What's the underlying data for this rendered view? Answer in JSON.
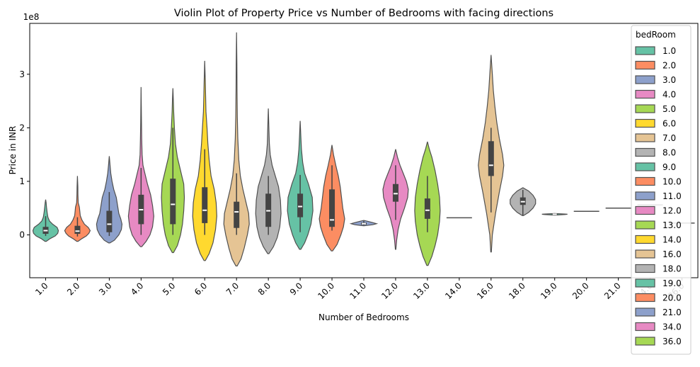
{
  "chart_data": {
    "type": "violin",
    "title": "Violin Plot of Property Price vs Number of Bedrooms with facing directions",
    "xlabel": "Number of Bedrooms",
    "ylabel": "Price in INR",
    "y_scale_label": "1e8",
    "y_unit": 100000000,
    "ylim": [
      -80000000,
      395000000
    ],
    "yticks": [
      "0",
      "1",
      "2",
      "3"
    ],
    "grid": false,
    "legend_title": "bedRoom",
    "legend_position": "upper right",
    "categories": [
      "1.0",
      "2.0",
      "3.0",
      "4.0",
      "5.0",
      "6.0",
      "7.0",
      "8.0",
      "9.0",
      "10.0",
      "11.0",
      "12.0",
      "13.0",
      "14.0",
      "16.0",
      "18.0",
      "19.0",
      "20.0",
      "21.0",
      "34.0",
      "36.0"
    ],
    "palette": [
      "#66c2a5",
      "#fc8d62",
      "#8da0cb",
      "#e78ac3",
      "#a6d854",
      "#ffd92f",
      "#e5c494",
      "#b3b3b3"
    ],
    "violins": [
      {
        "min": -12000000,
        "max": 66000000,
        "q1": 2000000,
        "median": 8000000,
        "q3": 15000000,
        "wlo": -2000000,
        "whi": 35000000,
        "profile": [
          [
            -12,
            0.05
          ],
          [
            -7,
            0.35
          ],
          [
            -2,
            0.75
          ],
          [
            3,
            0.95
          ],
          [
            8,
            1.0
          ],
          [
            14,
            0.9
          ],
          [
            20,
            0.55
          ],
          [
            26,
            0.3
          ],
          [
            33,
            0.18
          ],
          [
            42,
            0.12
          ],
          [
            52,
            0.07
          ],
          [
            60,
            0.04
          ],
          [
            66,
            0.0
          ]
        ]
      },
      {
        "min": -12000000,
        "max": 110000000,
        "q1": 2000000,
        "median": 7000000,
        "q3": 17000000,
        "wlo": -3000000,
        "whi": 33000000,
        "profile": [
          [
            -12,
            0.05
          ],
          [
            -7,
            0.35
          ],
          [
            -2,
            0.7
          ],
          [
            3,
            0.9
          ],
          [
            8,
            1.0
          ],
          [
            14,
            0.85
          ],
          [
            20,
            0.55
          ],
          [
            28,
            0.35
          ],
          [
            36,
            0.22
          ],
          [
            45,
            0.18
          ],
          [
            52,
            0.15
          ],
          [
            60,
            0.06
          ],
          [
            75,
            0.04
          ],
          [
            90,
            0.03
          ],
          [
            110,
            0.0
          ]
        ]
      },
      {
        "min": -15000000,
        "max": 147000000,
        "q1": 5000000,
        "median": 20000000,
        "q3": 45000000,
        "wlo": -2000000,
        "whi": 80000000,
        "profile": [
          [
            -15,
            0.05
          ],
          [
            -10,
            0.4
          ],
          [
            0,
            0.75
          ],
          [
            10,
            0.95
          ],
          [
            20,
            1.0
          ],
          [
            30,
            0.9
          ],
          [
            40,
            0.75
          ],
          [
            55,
            0.65
          ],
          [
            70,
            0.55
          ],
          [
            85,
            0.35
          ],
          [
            100,
            0.22
          ],
          [
            115,
            0.12
          ],
          [
            130,
            0.06
          ],
          [
            147,
            0.0
          ]
        ]
      },
      {
        "min": -22000000,
        "max": 276000000,
        "q1": 20000000,
        "median": 47000000,
        "q3": 75000000,
        "wlo": 0,
        "whi": 125000000,
        "profile": [
          [
            -22,
            0.05
          ],
          [
            -12,
            0.4
          ],
          [
            0,
            0.7
          ],
          [
            15,
            0.9
          ],
          [
            35,
            1.0
          ],
          [
            55,
            0.9
          ],
          [
            75,
            0.75
          ],
          [
            95,
            0.5
          ],
          [
            115,
            0.3
          ],
          [
            130,
            0.15
          ],
          [
            150,
            0.08
          ],
          [
            180,
            0.05
          ],
          [
            210,
            0.03
          ],
          [
            276,
            0.0
          ]
        ]
      },
      {
        "min": -33000000,
        "max": 274000000,
        "q1": 20000000,
        "median": 57000000,
        "q3": 105000000,
        "wlo": 0,
        "whi": 200000000,
        "profile": [
          [
            -33,
            0.05
          ],
          [
            -20,
            0.35
          ],
          [
            0,
            0.6
          ],
          [
            20,
            0.75
          ],
          [
            45,
            0.85
          ],
          [
            70,
            0.9
          ],
          [
            95,
            0.85
          ],
          [
            120,
            0.6
          ],
          [
            145,
            0.35
          ],
          [
            170,
            0.2
          ],
          [
            200,
            0.12
          ],
          [
            230,
            0.06
          ],
          [
            255,
            0.03
          ],
          [
            274,
            0.0
          ]
        ]
      },
      {
        "min": -48000000,
        "max": 325000000,
        "q1": 22000000,
        "median": 46000000,
        "q3": 89000000,
        "wlo": 0,
        "whi": 160000000,
        "profile": [
          [
            -48,
            0.05
          ],
          [
            -35,
            0.35
          ],
          [
            -15,
            0.65
          ],
          [
            10,
            0.85
          ],
          [
            35,
            0.95
          ],
          [
            60,
            0.9
          ],
          [
            85,
            0.75
          ],
          [
            110,
            0.5
          ],
          [
            140,
            0.35
          ],
          [
            170,
            0.25
          ],
          [
            200,
            0.18
          ],
          [
            230,
            0.1
          ],
          [
            260,
            0.07
          ],
          [
            290,
            0.04
          ],
          [
            325,
            0.0
          ]
        ]
      },
      {
        "min": -58000000,
        "max": 378000000,
        "q1": 13000000,
        "median": 43000000,
        "q3": 62000000,
        "wlo": 0,
        "whi": 115000000,
        "profile": [
          [
            -58,
            0.05
          ],
          [
            -45,
            0.35
          ],
          [
            -25,
            0.6
          ],
          [
            0,
            0.85
          ],
          [
            20,
            1.0
          ],
          [
            40,
            0.95
          ],
          [
            60,
            0.75
          ],
          [
            85,
            0.5
          ],
          [
            110,
            0.3
          ],
          [
            140,
            0.18
          ],
          [
            180,
            0.1
          ],
          [
            220,
            0.06
          ],
          [
            270,
            0.04
          ],
          [
            320,
            0.03
          ],
          [
            378,
            0.0
          ]
        ]
      },
      {
        "min": -35000000,
        "max": 236000000,
        "q1": 15000000,
        "median": 45000000,
        "q3": 77000000,
        "wlo": 0,
        "whi": 110000000,
        "profile": [
          [
            -35,
            0.05
          ],
          [
            -22,
            0.4
          ],
          [
            -5,
            0.7
          ],
          [
            15,
            0.9
          ],
          [
            40,
            1.0
          ],
          [
            65,
            0.95
          ],
          [
            90,
            0.8
          ],
          [
            110,
            0.55
          ],
          [
            130,
            0.3
          ],
          [
            150,
            0.15
          ],
          [
            170,
            0.08
          ],
          [
            195,
            0.05
          ],
          [
            236,
            0.0
          ]
        ]
      },
      {
        "min": -27000000,
        "max": 213000000,
        "q1": 33000000,
        "median": 53000000,
        "q3": 77000000,
        "wlo": 5000000,
        "whi": 112000000,
        "profile": [
          [
            -27,
            0.05
          ],
          [
            -15,
            0.35
          ],
          [
            0,
            0.6
          ],
          [
            20,
            0.85
          ],
          [
            45,
            1.0
          ],
          [
            70,
            0.95
          ],
          [
            95,
            0.65
          ],
          [
            115,
            0.35
          ],
          [
            135,
            0.2
          ],
          [
            160,
            0.1
          ],
          [
            185,
            0.05
          ],
          [
            213,
            0.0
          ]
        ]
      },
      {
        "min": -30000000,
        "max": 168000000,
        "q1": 15000000,
        "median": 28000000,
        "q3": 85000000,
        "wlo": 8000000,
        "whi": 130000000,
        "profile": [
          [
            -30,
            0.05
          ],
          [
            -18,
            0.4
          ],
          [
            0,
            0.7
          ],
          [
            15,
            0.9
          ],
          [
            30,
            1.0
          ],
          [
            50,
            0.85
          ],
          [
            70,
            0.75
          ],
          [
            90,
            0.65
          ],
          [
            110,
            0.5
          ],
          [
            130,
            0.3
          ],
          [
            150,
            0.12
          ],
          [
            168,
            0.0
          ]
        ]
      },
      {
        "min": 17000000,
        "max": 27000000,
        "q1": 19000000,
        "median": 21000000,
        "q3": 23000000,
        "wlo": 18000000,
        "whi": 26000000,
        "profile": [
          [
            17,
            0.02
          ],
          [
            19,
            0.7
          ],
          [
            21,
            1.0
          ],
          [
            23,
            0.7
          ],
          [
            25,
            0.35
          ],
          [
            27,
            0.0
          ]
        ]
      },
      {
        "min": -27000000,
        "max": 160000000,
        "q1": 62000000,
        "median": 77000000,
        "q3": 95000000,
        "wlo": 28000000,
        "whi": 130000000,
        "profile": [
          [
            -27,
            0.02
          ],
          [
            -10,
            0.08
          ],
          [
            10,
            0.2
          ],
          [
            30,
            0.4
          ],
          [
            50,
            0.7
          ],
          [
            70,
            0.95
          ],
          [
            85,
            1.0
          ],
          [
            100,
            0.85
          ],
          [
            115,
            0.6
          ],
          [
            130,
            0.35
          ],
          [
            145,
            0.15
          ],
          [
            160,
            0.0
          ]
        ]
      },
      {
        "min": -57000000,
        "max": 174000000,
        "q1": 30000000,
        "median": 46000000,
        "q3": 68000000,
        "wlo": 5000000,
        "whi": 110000000,
        "profile": [
          [
            -57,
            0.05
          ],
          [
            -40,
            0.35
          ],
          [
            -20,
            0.6
          ],
          [
            0,
            0.8
          ],
          [
            25,
            0.95
          ],
          [
            45,
            1.0
          ],
          [
            70,
            0.95
          ],
          [
            95,
            0.8
          ],
          [
            120,
            0.6
          ],
          [
            145,
            0.35
          ],
          [
            160,
            0.15
          ],
          [
            174,
            0.0
          ]
        ]
      },
      {
        "min": 32000000,
        "max": 32000000,
        "q1": 32000000,
        "median": 32000000,
        "q3": 32000000,
        "wlo": 32000000,
        "whi": 32000000,
        "profile": []
      },
      {
        "min": -32000000,
        "max": 336000000,
        "q1": 110000000,
        "median": 130000000,
        "q3": 175000000,
        "wlo": 42000000,
        "whi": 200000000,
        "profile": [
          [
            -32,
            0.02
          ],
          [
            0,
            0.1
          ],
          [
            40,
            0.35
          ],
          [
            80,
            0.65
          ],
          [
            110,
            0.9
          ],
          [
            130,
            1.0
          ],
          [
            150,
            0.9
          ],
          [
            180,
            0.65
          ],
          [
            210,
            0.45
          ],
          [
            240,
            0.3
          ],
          [
            270,
            0.18
          ],
          [
            300,
            0.1
          ],
          [
            336,
            0.0
          ]
        ]
      },
      {
        "min": 36000000,
        "max": 88000000,
        "q1": 56000000,
        "median": 62000000,
        "q3": 70000000,
        "wlo": 36000000,
        "whi": 84000000,
        "profile": [
          [
            36,
            0.05
          ],
          [
            42,
            0.45
          ],
          [
            50,
            0.8
          ],
          [
            58,
            1.0
          ],
          [
            66,
            1.0
          ],
          [
            74,
            0.8
          ],
          [
            82,
            0.45
          ],
          [
            88,
            0.0
          ]
        ]
      },
      {
        "min": 37000000,
        "max": 40000000,
        "q1": 38000000,
        "median": 38500000,
        "q3": 39000000,
        "wlo": 37500000,
        "whi": 39500000,
        "profile": [
          [
            37,
            0.05
          ],
          [
            38,
            0.8
          ],
          [
            38.5,
            1.0
          ],
          [
            39,
            0.8
          ],
          [
            40,
            0.0
          ]
        ]
      },
      {
        "min": 44000000,
        "max": 44000000,
        "q1": 44000000,
        "median": 44000000,
        "q3": 44000000,
        "wlo": 44000000,
        "whi": 44000000,
        "profile": []
      },
      {
        "min": 50000000,
        "max": 50000000,
        "q1": 50000000,
        "median": 50000000,
        "q3": 50000000,
        "wlo": 50000000,
        "whi": 50000000,
        "profile": []
      },
      {
        "min": 56000000,
        "max": 56000000,
        "q1": 56000000,
        "median": 56000000,
        "q3": 56000000,
        "wlo": 56000000,
        "whi": 56000000,
        "profile": []
      },
      {
        "min": 22000000,
        "max": 22000000,
        "q1": 22000000,
        "median": 22000000,
        "q3": 22000000,
        "wlo": 22000000,
        "whi": 22000000,
        "profile": []
      }
    ]
  }
}
